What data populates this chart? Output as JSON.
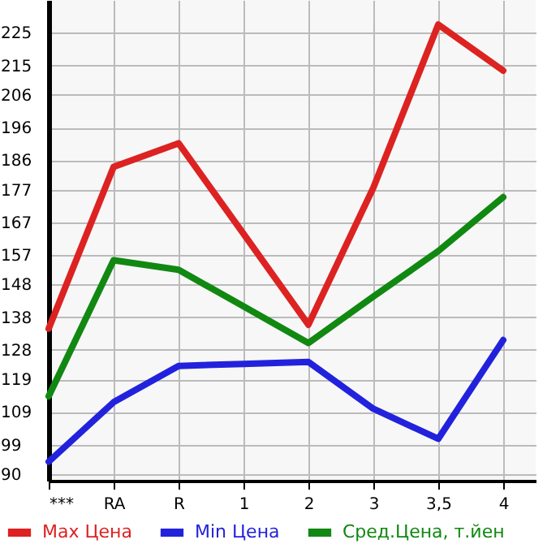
{
  "chart_data": {
    "type": "line",
    "categories": [
      "***",
      "RA",
      "R",
      "1",
      "2",
      "3",
      "3,5",
      "4"
    ],
    "series": [
      {
        "name": "Max Цена",
        "color": "#dd2222",
        "values": [
          134.5,
          184,
          191.2,
          163.5,
          135.7,
          177.6,
          227.5,
          213.4
        ]
      },
      {
        "name": "Min Цена",
        "color": "#2222dd",
        "values": [
          93.8,
          112,
          123.1,
          123.7,
          124.3,
          110,
          100.8,
          131
        ]
      },
      {
        "name": "Сред.Цена, т.йен",
        "color": "#118811",
        "values": [
          113.8,
          155.4,
          152.5,
          141.3,
          130.1,
          144.3,
          158.2,
          174.7
        ]
      }
    ],
    "ylim": [
      88,
      235
    ],
    "yticks": [
      90,
      99,
      109,
      119,
      128,
      138,
      148,
      157,
      167,
      177,
      186,
      196,
      206,
      215,
      225
    ],
    "grid": true,
    "legend": "bottom",
    "marker": "none",
    "line_style": "solid"
  }
}
